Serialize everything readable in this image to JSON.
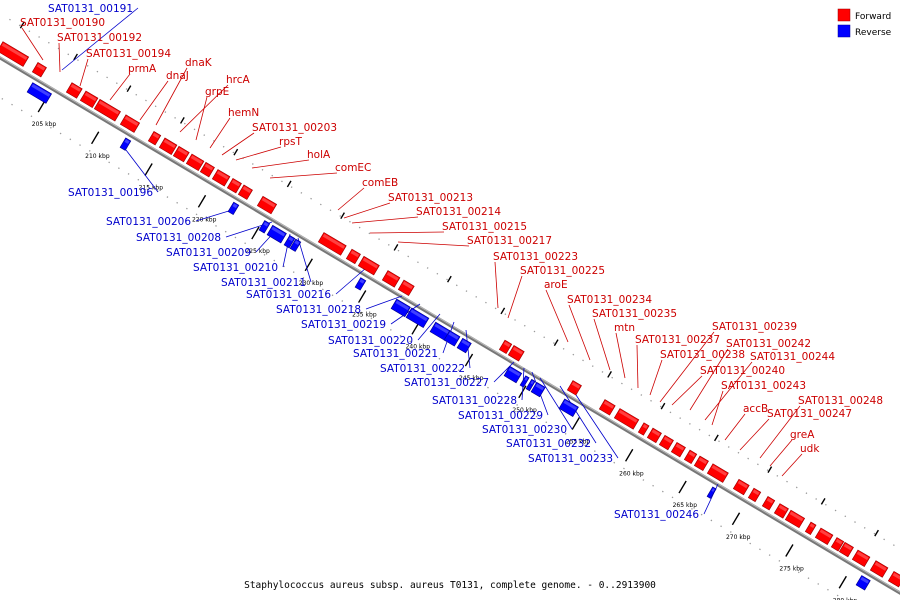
{
  "caption": "Staphylococcus aureus subsp. aureus T0131, complete genome. - 0..2913900",
  "legend": [
    {
      "label": "Forward",
      "color": "#ff0000"
    },
    {
      "label": "Reverse",
      "color": "#0000ff"
    }
  ],
  "colors": {
    "forward": "#ff0000",
    "reverse": "#0000ff",
    "forward_label": "#cc0000",
    "reverse_label": "#0000cc",
    "backbone": "#888888"
  },
  "ticks": [
    "205 kbp",
    "210 kbp",
    "215 kbp",
    "220 kbp",
    "225 kbp",
    "230 kbp",
    "235 kbp",
    "240 kbp",
    "245 kbp",
    "250 kbp",
    "255 kbp",
    "260 kbp",
    "265 kbp",
    "270 kbp",
    "275 kbp",
    "280 kbp"
  ],
  "forward_genes": [
    "SAT0131_00190",
    "SAT0131_00192",
    "SAT0131_00194",
    "prmA",
    "dnaJ",
    "dnaK",
    "hrcA",
    "grpE",
    "hemN",
    "SAT0131_00203",
    "rpsT",
    "holA",
    "comEC",
    "comEB",
    "SAT0131_00213",
    "SAT0131_00214",
    "SAT0131_00215",
    "SAT0131_00217",
    "SAT0131_00223",
    "SAT0131_00225",
    "aroE",
    "SAT0131_00234",
    "SAT0131_00235",
    "mtn",
    "SAT0131_00237",
    "SAT0131_00238",
    "SAT0131_00239",
    "SAT0131_00242",
    "SAT0131_00244",
    "SAT0131_00240",
    "SAT0131_00243",
    "accB",
    "SAT0131_00247",
    "SAT0131_00248",
    "greA",
    "udk"
  ],
  "reverse_genes": [
    "SAT0131_00191",
    "SAT0131_00196",
    "SAT0131_00206",
    "SAT0131_00208",
    "SAT0131_00209",
    "SAT0131_00210",
    "SAT0131_00211",
    "SAT0131_00216",
    "SAT0131_00218",
    "SAT0131_00219",
    "SAT0131_00220",
    "SAT0131_00221",
    "SAT0131_00222",
    "SAT0131_00227",
    "SAT0131_00228",
    "SAT0131_00229",
    "SAT0131_00230",
    "SAT0131_00232",
    "SAT0131_00233",
    "SAT0131_00246"
  ]
}
